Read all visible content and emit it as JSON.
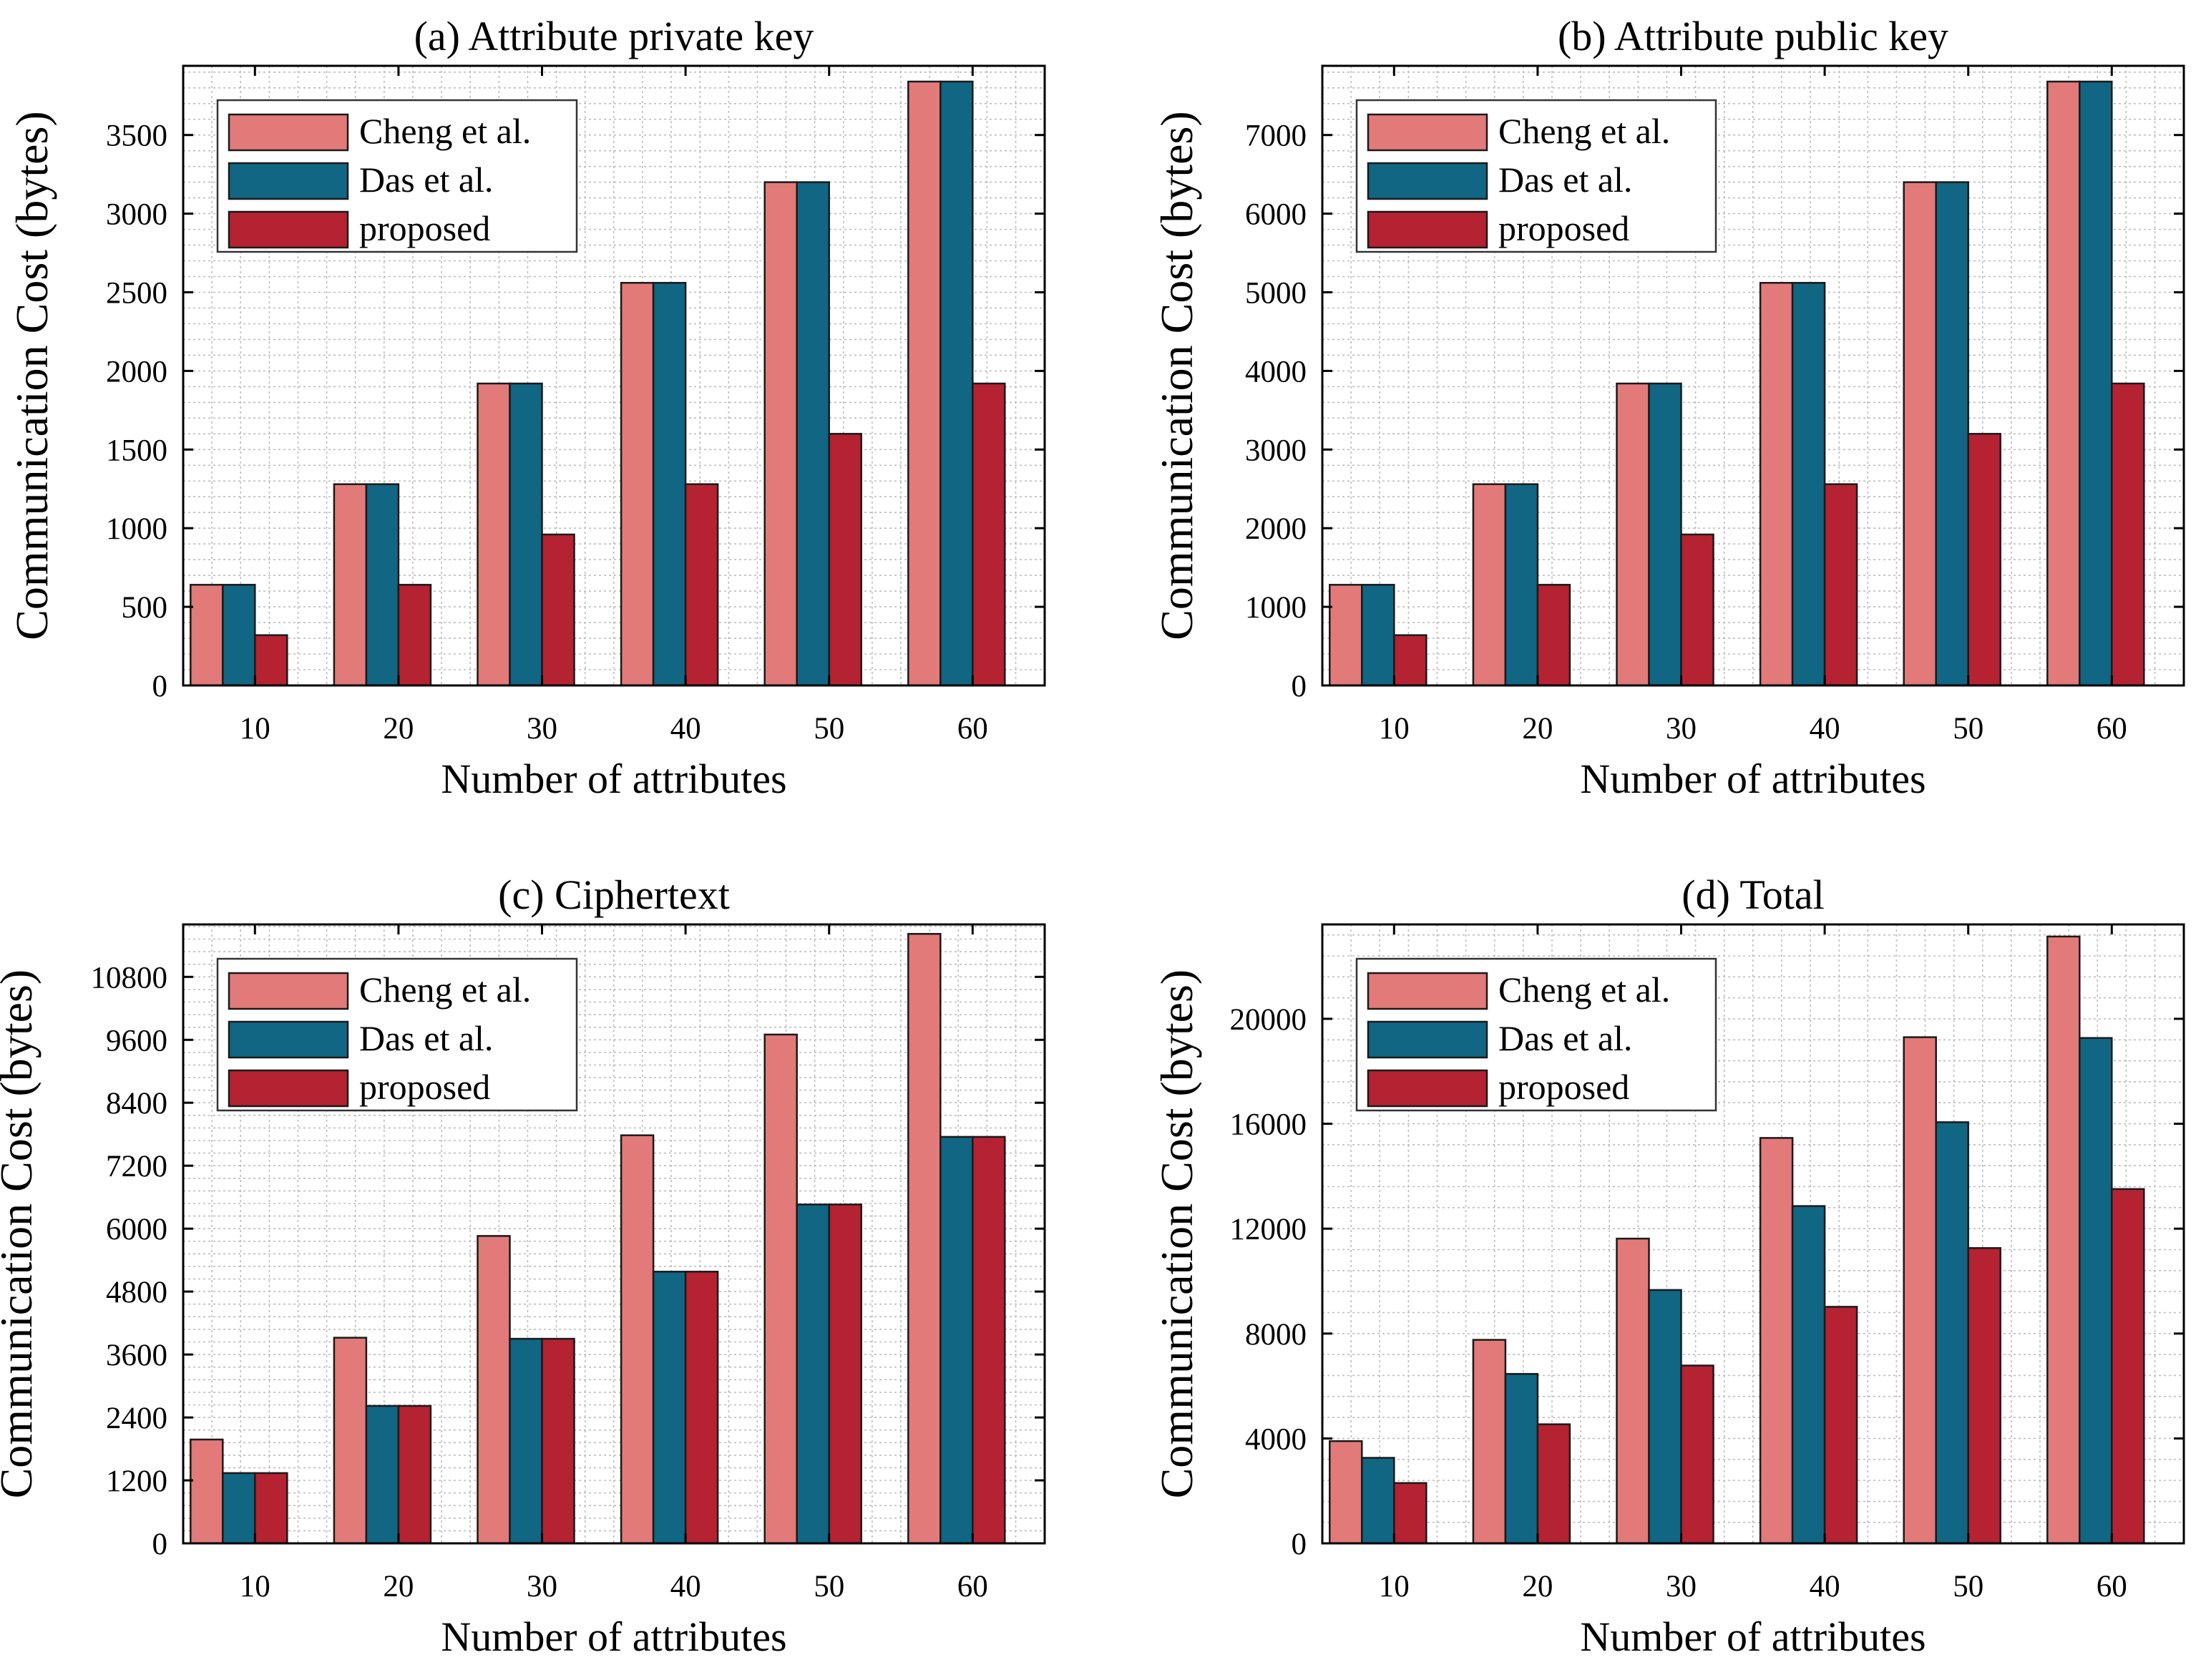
{
  "colors": {
    "cheng": "#E27A79",
    "das": "#106683",
    "proposed": "#B52231",
    "axis": "#000000",
    "grid": "#BDBDBD",
    "background": "#FFFFFF"
  },
  "chart_data": [
    {
      "type": "bar",
      "title": "(a) Attribute private key",
      "xlabel": "Number of attributes",
      "ylabel": "Communication Cost (bytes)",
      "categories": [
        "10",
        "20",
        "30",
        "40",
        "50",
        "60"
      ],
      "ylim": [
        0,
        3940
      ],
      "yticks": [
        0,
        500,
        1000,
        1500,
        2000,
        2500,
        3000,
        3500
      ],
      "ytick_labels": [
        "0",
        "500",
        "1000",
        "1500",
        "2000",
        "2500",
        "3000",
        "3500"
      ],
      "legend": "top-left",
      "grid": true,
      "series": [
        {
          "name": "Cheng et al.",
          "values": [
            640,
            1280,
            1920,
            2560,
            3200,
            3840
          ]
        },
        {
          "name": "Das et al.",
          "values": [
            640,
            1280,
            1920,
            2560,
            3200,
            3840
          ]
        },
        {
          "name": "proposed",
          "values": [
            320,
            640,
            960,
            1280,
            1600,
            1920
          ]
        }
      ]
    },
    {
      "type": "bar",
      "title": "(b) Attribute public key",
      "xlabel": "Number of attributes",
      "ylabel": "Communication Cost (bytes)",
      "categories": [
        "10",
        "20",
        "30",
        "40",
        "50",
        "60"
      ],
      "ylim": [
        0,
        7880
      ],
      "yticks": [
        0,
        1000,
        2000,
        3000,
        4000,
        5000,
        6000,
        7000
      ],
      "ytick_labels": [
        "0",
        "1000",
        "2000",
        "3000",
        "4000",
        "5000",
        "6000",
        "7000"
      ],
      "legend": "top-left",
      "grid": true,
      "series": [
        {
          "name": "Cheng et al.",
          "values": [
            1280,
            2560,
            3840,
            5120,
            6400,
            7680
          ]
        },
        {
          "name": "Das et al.",
          "values": [
            1280,
            2560,
            3840,
            5120,
            6400,
            7680
          ]
        },
        {
          "name": "proposed",
          "values": [
            640,
            1280,
            1920,
            2560,
            3200,
            3840
          ]
        }
      ]
    },
    {
      "type": "bar",
      "title": "(c) Ciphertext",
      "xlabel": "Number of attributes",
      "ylabel": "Communication Cost (bytes)",
      "categories": [
        "10",
        "20",
        "30",
        "40",
        "50",
        "60"
      ],
      "ylim": [
        0,
        11800
      ],
      "yticks": [
        0,
        1200,
        2400,
        3600,
        4800,
        6000,
        7200,
        8400,
        9600,
        10800
      ],
      "ytick_labels": [
        "0",
        "1200",
        "2400",
        "3600",
        "4800",
        "6000",
        "7200",
        "8400",
        "9600",
        "10800"
      ],
      "legend": "top-left",
      "grid": true,
      "series": [
        {
          "name": "Cheng et al.",
          "values": [
            1980,
            3920,
            5860,
            7780,
            9700,
            11620
          ]
        },
        {
          "name": "Das et al.",
          "values": [
            1340,
            2620,
            3900,
            5180,
            6460,
            7750
          ]
        },
        {
          "name": "proposed",
          "values": [
            1340,
            2620,
            3900,
            5180,
            6460,
            7750
          ]
        }
      ]
    },
    {
      "type": "bar",
      "title": "(d) Total",
      "xlabel": "Number of attributes",
      "ylabel": "Communication Cost (bytes)",
      "categories": [
        "10",
        "20",
        "30",
        "40",
        "50",
        "60"
      ],
      "ylim": [
        0,
        23600
      ],
      "yticks": [
        0,
        4000,
        8000,
        12000,
        16000,
        20000
      ],
      "ytick_labels": [
        "0",
        "4000",
        "8000",
        "12000",
        "16000",
        "20000"
      ],
      "legend": "top-left",
      "grid": true,
      "series": [
        {
          "name": "Cheng et al.",
          "values": [
            3900,
            7760,
            11620,
            15460,
            19300,
            23140
          ]
        },
        {
          "name": "Das et al.",
          "values": [
            3260,
            6460,
            9660,
            12860,
            16060,
            19270
          ]
        },
        {
          "name": "proposed",
          "values": [
            2300,
            4540,
            6780,
            9020,
            11260,
            13510
          ]
        }
      ]
    }
  ]
}
